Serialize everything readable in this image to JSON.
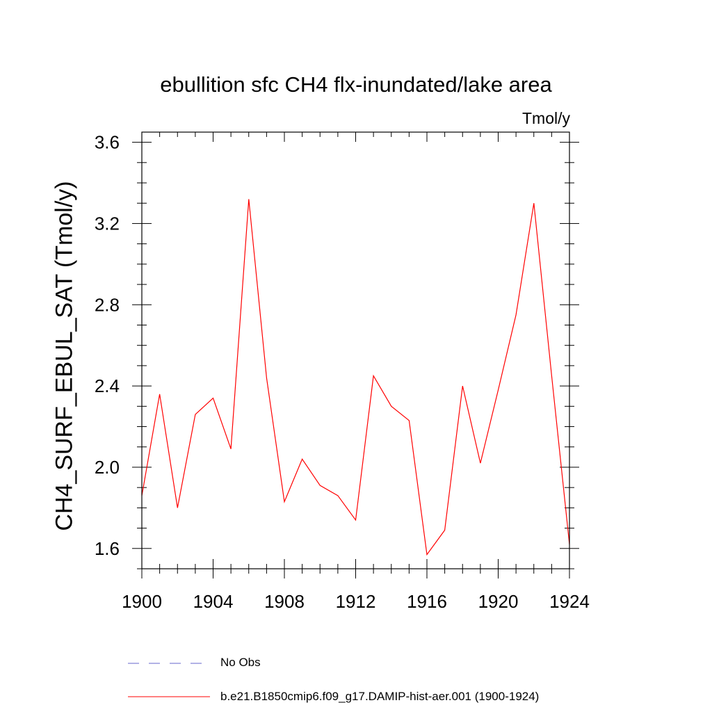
{
  "chart_data": {
    "type": "line",
    "title": "ebullition sfc CH4 flx-inundated/lake area",
    "units_label": "Tmol/y",
    "ylabel": "CH4_SURF_EBUL_SAT  (Tmol/y)",
    "xlabel": "",
    "xlim": [
      1900,
      1924
    ],
    "ylim": [
      1.5,
      3.65
    ],
    "x_ticks": [
      1900,
      1904,
      1908,
      1912,
      1916,
      1920,
      1924
    ],
    "y_ticks": [
      1.6,
      2.0,
      2.4,
      2.8,
      3.2,
      3.6
    ],
    "y_tick_labels": [
      "1.6",
      "2.0",
      "2.4",
      "2.8",
      "3.2",
      "3.6"
    ],
    "grid": false,
    "legend_position": "bottom",
    "series": [
      {
        "name": "b.e21.B1850cmip6.f09_g17.DAMIP-hist-aer.001 (1900-1924)",
        "color": "#ff0000",
        "style": "solid",
        "x": [
          1900,
          1901,
          1902,
          1903,
          1904,
          1905,
          1906,
          1907,
          1908,
          1909,
          1910,
          1911,
          1912,
          1913,
          1914,
          1915,
          1916,
          1917,
          1918,
          1919,
          1920,
          1921,
          1922,
          1923,
          1924
        ],
        "values": [
          1.86,
          2.36,
          1.8,
          2.26,
          2.34,
          2.09,
          3.32,
          2.44,
          1.83,
          2.04,
          1.91,
          1.86,
          1.74,
          2.45,
          2.3,
          2.23,
          1.57,
          1.69,
          2.4,
          2.02,
          2.38,
          2.75,
          3.3,
          2.45,
          1.62
        ]
      }
    ],
    "legend": [
      {
        "label": "No Obs",
        "color": "#6666cc",
        "style": "dashed"
      },
      {
        "label": "b.e21.B1850cmip6.f09_g17.DAMIP-hist-aer.001 (1900-1924)",
        "color": "#ff0000",
        "style": "solid"
      }
    ]
  }
}
